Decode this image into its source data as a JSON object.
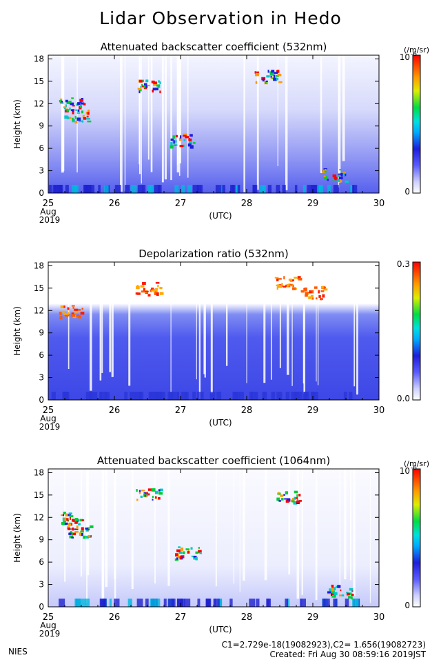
{
  "page": {
    "title": "Lidar Observation in Hedo"
  },
  "footer": {
    "org": "NIES",
    "calibration": "C1=2.729e-18(19082923),C2= 1.656(19082723)",
    "created": "Created: Fri Aug 30 08:59:16 2019JST"
  },
  "chart_data": [
    {
      "type": "heatmap",
      "title": "Attenuated backscatter coefficient (532nm)",
      "xlabel": "(UTC)",
      "ylabel": "Height (km)",
      "x_ticks": [
        "25",
        "26",
        "27",
        "28",
        "29",
        "30"
      ],
      "x_tick_sub": [
        "Aug",
        "2019"
      ],
      "xlim": [
        25,
        30
      ],
      "y_ticks": [
        0,
        3,
        6,
        9,
        12,
        15,
        18
      ],
      "ylim": [
        0,
        18.5
      ],
      "colorbar": {
        "min_label": "0",
        "max_label": "10",
        "max_exponent": "-6",
        "unit": "(/m/sr)",
        "scale": "log"
      },
      "features": [
        {
          "day": 25.35,
          "height": 12,
          "level": "high"
        },
        {
          "day": 25.42,
          "height": 10.5,
          "level": "high"
        },
        {
          "day": 26.52,
          "height": 14.5,
          "level": "high"
        },
        {
          "day": 27.0,
          "height": 7.2,
          "level": "high"
        },
        {
          "day": 28.3,
          "height": 15.8,
          "level": "high"
        },
        {
          "day": 29.3,
          "height": 2.5,
          "level": "high"
        }
      ]
    },
    {
      "type": "heatmap",
      "title": "Depolarization ratio (532nm)",
      "xlabel": "(UTC)",
      "ylabel": "Height (km)",
      "x_ticks": [
        "25",
        "26",
        "27",
        "28",
        "29",
        "30"
      ],
      "x_tick_sub": [
        "Aug",
        "2019"
      ],
      "xlim": [
        25,
        30
      ],
      "y_ticks": [
        0,
        3,
        6,
        9,
        12,
        15,
        18
      ],
      "ylim": [
        0,
        18.5
      ],
      "colorbar": {
        "min_label": "0.0",
        "max_label": "0.3",
        "scale": "linear"
      },
      "features": [
        {
          "day": 25.35,
          "height": 12,
          "level": "high"
        },
        {
          "day": 26.5,
          "height": 15,
          "level": "high"
        },
        {
          "day": 28.6,
          "height": 15.8,
          "level": "high"
        },
        {
          "day": 29.0,
          "height": 14.5,
          "level": "high"
        }
      ]
    },
    {
      "type": "heatmap",
      "title": "Attenuated backscatter coefficient (1064nm)",
      "xlabel": "(UTC)",
      "ylabel": "Height (km)",
      "x_ticks": [
        "25",
        "26",
        "27",
        "28",
        "29",
        "30"
      ],
      "x_tick_sub": [
        "Aug",
        "2019"
      ],
      "xlim": [
        25,
        30
      ],
      "y_ticks": [
        0,
        3,
        6,
        9,
        12,
        15,
        18
      ],
      "ylim": [
        0,
        18.5
      ],
      "colorbar": {
        "min_label": "0",
        "max_label": "10",
        "max_exponent": "-6",
        "unit": "(/m/sr)",
        "scale": "log"
      },
      "features": [
        {
          "day": 25.35,
          "height": 12,
          "level": "high"
        },
        {
          "day": 25.45,
          "height": 10.2,
          "level": "high"
        },
        {
          "day": 26.5,
          "height": 15.2,
          "level": "high"
        },
        {
          "day": 27.1,
          "height": 7.3,
          "level": "high"
        },
        {
          "day": 28.6,
          "height": 14.8,
          "level": "high"
        },
        {
          "day": 29.4,
          "height": 2.2,
          "level": "high"
        }
      ]
    }
  ]
}
